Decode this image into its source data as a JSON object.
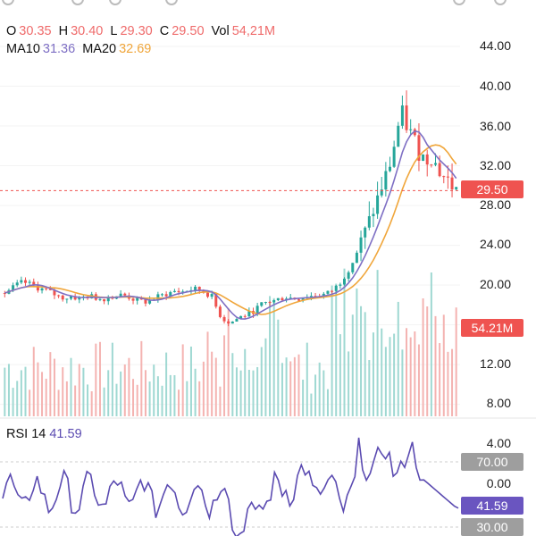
{
  "legend": {
    "open_label": "O",
    "open": "30.35",
    "high_label": "H",
    "high": "30.40",
    "low_label": "L",
    "low": "29.30",
    "close_label": "C",
    "close": "29.50",
    "vol_label": "Vol",
    "volume": "54,21M",
    "ma10_label": "MA10",
    "ma10": "31.36",
    "ma20_label": "MA20",
    "ma20": "32.69"
  },
  "rsi_legend": {
    "label": "RSI 14",
    "value": "41.59"
  },
  "price_axis": [
    "44.00",
    "40.00",
    "36.00",
    "32.00",
    "28.00",
    "24.00",
    "20.00",
    "12.00",
    "8.00"
  ],
  "rsi_axis": [
    "4.00",
    "0.00"
  ],
  "tags": {
    "last_price": "29.50",
    "volume": "54.21M",
    "rsi_upper": "70.00",
    "rsi_value": "41.59",
    "rsi_lower": "30.00"
  },
  "colors": {
    "up": "#26a69a",
    "down": "#ef5350",
    "ma10": "#7e6fc4",
    "ma20": "#f0a63b",
    "rsi": "#5b4bb1",
    "open_value": "#ef6b6b",
    "ma10_value": "#7e6fc4",
    "ma20_value": "#f0a63b",
    "rsi_value": "#5b4bb1",
    "last_price_tag": "#ef5350",
    "volume_tag": "#ef5350",
    "rsi_band_tag": "#9e9e9e",
    "rsi_value_tag": "#6a55c0"
  },
  "chart_data": {
    "type": "candlestick",
    "price_range": [
      8,
      46
    ],
    "close_series": [
      19.2,
      19.6,
      20.0,
      20.3,
      20.1,
      19.8,
      19.6,
      19.4,
      19.1,
      18.8,
      18.7,
      18.9,
      18.6,
      18.8,
      18.9,
      18.7,
      18.6,
      18.8,
      18.9,
      19.0,
      18.9,
      18.6,
      18.4,
      18.3,
      18.5,
      18.8,
      19.0,
      19.2,
      19.4,
      19.3,
      19.5,
      19.6,
      19.5,
      19.2,
      18.8,
      17.2,
      16.5,
      16.2,
      16.6,
      16.9,
      17.1,
      17.5,
      18.0,
      18.3,
      18.4,
      18.6,
      18.8,
      18.7,
      18.6,
      18.8,
      18.9,
      18.9,
      19.0,
      19.2,
      19.6,
      20.3,
      21.2,
      22.3,
      23.7,
      25.2,
      26.8,
      28.5,
      30.2,
      31.8,
      34.5,
      37.5,
      35.8,
      34.8,
      33.2,
      32.6,
      33.0,
      31.6,
      30.9,
      30.2,
      29.5
    ],
    "ma10_latest": 31.36,
    "ma20_latest": 32.69,
    "last_close": 29.5,
    "volume_latest_m": 54.21,
    "rsi_latest": 41.59,
    "rsi_bands": [
      70,
      30
    ]
  }
}
